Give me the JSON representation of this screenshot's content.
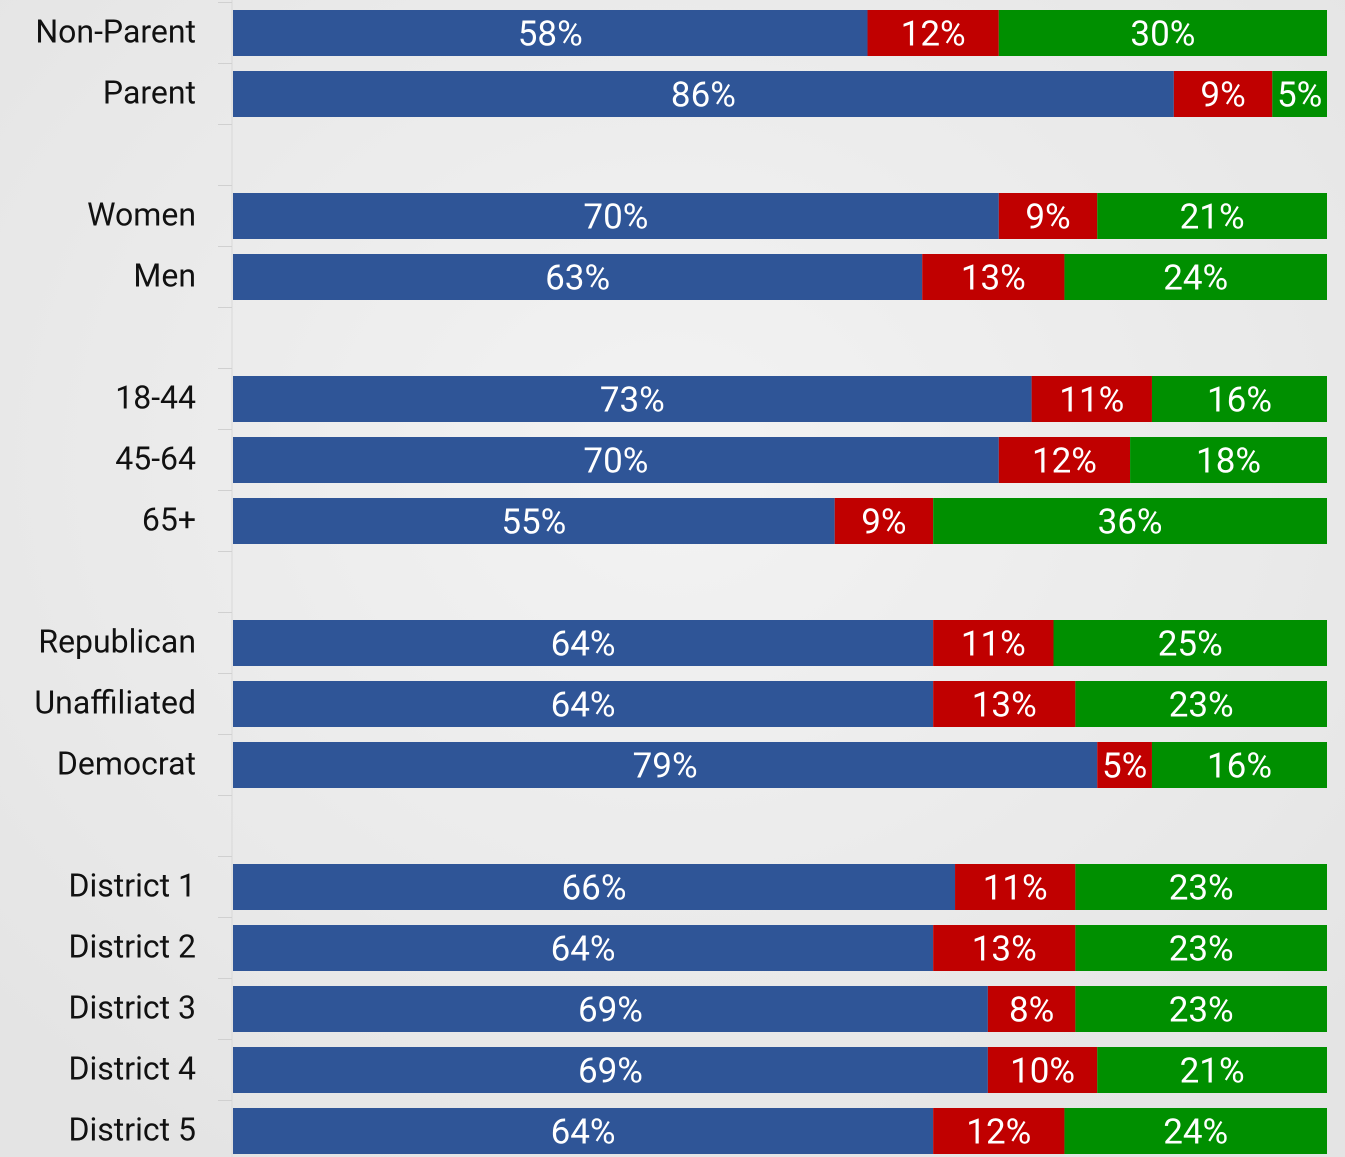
{
  "chart_data": {
    "type": "stacked-bar-horizontal",
    "categories": [
      "Non-Parent",
      "Parent",
      null,
      "Women",
      "Men",
      null,
      "18-44",
      "45-64",
      "65+",
      null,
      "Republican",
      "Unaffiliated",
      "Democrat",
      null,
      "District 1",
      "District 2",
      "District 3",
      "District 4",
      "District 5"
    ],
    "xlim": [
      0,
      100
    ],
    "series": [
      {
        "color": "#2f5597",
        "values": [
          58,
          86,
          null,
          70,
          63,
          null,
          73,
          70,
          55,
          null,
          64,
          64,
          79,
          null,
          66,
          64,
          69,
          69,
          64
        ],
        "value_labels": [
          "58%",
          "86%",
          null,
          "70%",
          "63%",
          null,
          "73%",
          "70%",
          "55%",
          null,
          "64%",
          "64%",
          "79%",
          null,
          "66%",
          "64%",
          "69%",
          "69%",
          "64%"
        ]
      },
      {
        "color": "#c00000",
        "values": [
          12,
          9,
          null,
          9,
          13,
          null,
          11,
          12,
          9,
          null,
          11,
          13,
          5,
          null,
          11,
          13,
          8,
          10,
          12
        ],
        "value_labels": [
          "12%",
          "9%",
          null,
          "9%",
          "13%",
          null,
          "11%",
          "12%",
          "9%",
          null,
          "11%",
          "13%",
          "5%",
          null,
          "11%",
          "13%",
          "8%",
          "10%",
          "12%"
        ]
      },
      {
        "color": "#008f00",
        "values": [
          30,
          5,
          null,
          21,
          24,
          null,
          16,
          18,
          36,
          null,
          25,
          23,
          16,
          null,
          23,
          23,
          23,
          21,
          24
        ],
        "value_labels": [
          "30%",
          "5%",
          null,
          "21%",
          "24%",
          null,
          "16%",
          "18%",
          "36%",
          null,
          "25%",
          "23%",
          "16%",
          null,
          "23%",
          "23%",
          "23%",
          "21%",
          "24%"
        ]
      }
    ]
  }
}
